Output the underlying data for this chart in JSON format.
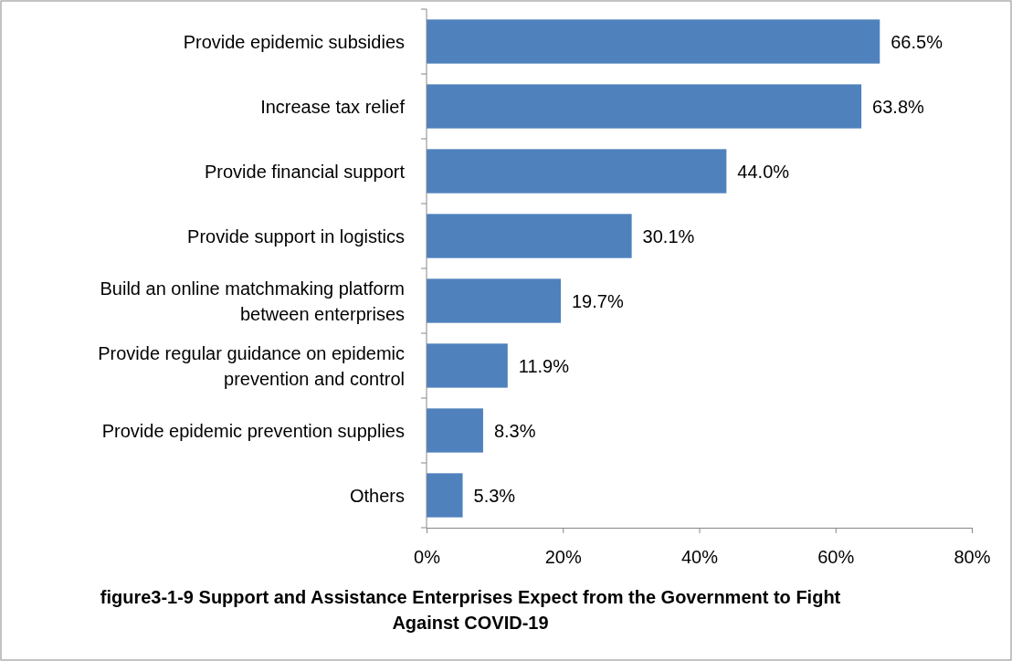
{
  "chart_data": {
    "type": "bar",
    "orientation": "horizontal",
    "title": "figure3-1-9 Support and Assistance Enterprises Expect from the Government to Fight Against COVID-19",
    "categories": [
      "Provide epidemic subsidies",
      "Increase tax relief",
      "Provide financial support",
      "Provide support in logistics",
      "Build an online matchmaking platform between enterprises",
      "Provide regular guidance on epidemic prevention and control",
      "Provide epidemic prevention supplies",
      "Others"
    ],
    "values": [
      66.5,
      63.8,
      44.0,
      30.1,
      19.7,
      11.9,
      8.3,
      5.3
    ],
    "value_labels": [
      "66.5%",
      "63.8%",
      "44.0%",
      "30.1%",
      "19.7%",
      "11.9%",
      "8.3%",
      "5.3%"
    ],
    "color": "#4f81bd",
    "xlim": [
      0,
      80
    ],
    "xticks": [
      {
        "value": 0,
        "label": "0%"
      },
      {
        "value": 20,
        "label": "20%"
      },
      {
        "value": 40,
        "label": "40%"
      },
      {
        "value": 60,
        "label": "60%"
      },
      {
        "value": 80,
        "label": "80%"
      }
    ],
    "grid": false
  }
}
